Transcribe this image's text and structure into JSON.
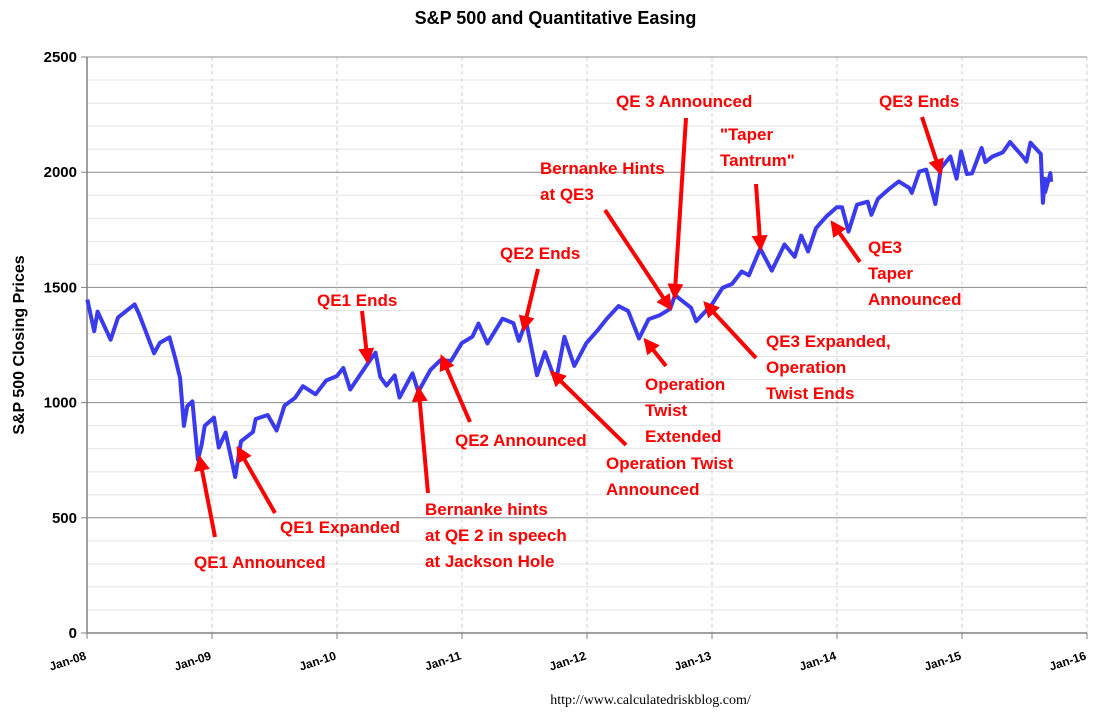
{
  "chart_data": {
    "type": "line",
    "title": "S&P 500 and Quantitative Easing",
    "ylabel": "S&P 500 Closing Prices",
    "xlabel": "",
    "ylim": [
      0,
      2500
    ],
    "yticks": [
      0,
      500,
      1000,
      1500,
      2000,
      2500
    ],
    "xlim": [
      "2008-01",
      "2016-01"
    ],
    "xticks": [
      "Jan-08",
      "Jan-09",
      "Jan-10",
      "Jan-11",
      "Jan-12",
      "Jan-13",
      "Jan-14",
      "Jan-15",
      "Jan-16"
    ],
    "grid": true,
    "line_color": "#3a3aee",
    "annotation_color": "#ff0000",
    "series": [
      {
        "points": [
          [
            "2008-01-02",
            1447
          ],
          [
            "2008-01-22",
            1310
          ],
          [
            "2008-02-01",
            1395
          ],
          [
            "2008-03-10",
            1273
          ],
          [
            "2008-04-01",
            1370
          ],
          [
            "2008-05-19",
            1426
          ],
          [
            "2008-06-01",
            1385
          ],
          [
            "2008-07-15",
            1214
          ],
          [
            "2008-08-01",
            1260
          ],
          [
            "2008-08-29",
            1283
          ],
          [
            "2008-09-15",
            1192
          ],
          [
            "2008-09-29",
            1106
          ],
          [
            "2008-10-10",
            899
          ],
          [
            "2008-10-20",
            985
          ],
          [
            "2008-11-04",
            1005
          ],
          [
            "2008-11-20",
            752
          ],
          [
            "2008-12-01",
            816
          ],
          [
            "2008-12-10",
            899
          ],
          [
            "2009-01-06",
            935
          ],
          [
            "2009-01-20",
            805
          ],
          [
            "2009-02-09",
            870
          ],
          [
            "2009-03-09",
            677
          ],
          [
            "2009-03-26",
            832
          ],
          [
            "2009-04-30",
            873
          ],
          [
            "2009-05-08",
            929
          ],
          [
            "2009-06-12",
            946
          ],
          [
            "2009-07-08",
            879
          ],
          [
            "2009-07-31",
            987
          ],
          [
            "2009-08-31",
            1021
          ],
          [
            "2009-09-23",
            1071
          ],
          [
            "2009-10-30",
            1036
          ],
          [
            "2009-11-30",
            1096
          ],
          [
            "2009-12-31",
            1115
          ],
          [
            "2010-01-19",
            1150
          ],
          [
            "2010-02-08",
            1057
          ],
          [
            "2010-03-31",
            1169
          ],
          [
            "2010-04-23",
            1217
          ],
          [
            "2010-05-07",
            1111
          ],
          [
            "2010-05-25",
            1074
          ],
          [
            "2010-06-18",
            1118
          ],
          [
            "2010-07-02",
            1022
          ],
          [
            "2010-08-09",
            1127
          ],
          [
            "2010-08-26",
            1047
          ],
          [
            "2010-09-30",
            1141
          ],
          [
            "2010-10-29",
            1183
          ],
          [
            "2010-11-30",
            1181
          ],
          [
            "2010-12-31",
            1258
          ],
          [
            "2011-01-31",
            1286
          ],
          [
            "2011-02-18",
            1343
          ],
          [
            "2011-03-16",
            1257
          ],
          [
            "2011-04-29",
            1364
          ],
          [
            "2011-05-31",
            1345
          ],
          [
            "2011-06-16",
            1268
          ],
          [
            "2011-07-07",
            1353
          ],
          [
            "2011-08-08",
            1119
          ],
          [
            "2011-08-31",
            1219
          ],
          [
            "2011-09-22",
            1130
          ],
          [
            "2011-10-03",
            1099
          ],
          [
            "2011-10-27",
            1285
          ],
          [
            "2011-11-25",
            1159
          ],
          [
            "2011-12-30",
            1258
          ],
          [
            "2012-01-31",
            1312
          ],
          [
            "2012-02-29",
            1366
          ],
          [
            "2012-04-02",
            1419
          ],
          [
            "2012-04-30",
            1398
          ],
          [
            "2012-06-01",
            1278
          ],
          [
            "2012-06-29",
            1362
          ],
          [
            "2012-07-31",
            1379
          ],
          [
            "2012-08-31",
            1407
          ],
          [
            "2012-09-14",
            1466
          ],
          [
            "2012-10-31",
            1412
          ],
          [
            "2012-11-15",
            1353
          ],
          [
            "2012-12-31",
            1426
          ],
          [
            "2013-01-31",
            1498
          ],
          [
            "2013-02-28",
            1515
          ],
          [
            "2013-03-28",
            1569
          ],
          [
            "2013-04-18",
            1552
          ],
          [
            "2013-05-21",
            1669
          ],
          [
            "2013-06-24",
            1573
          ],
          [
            "2013-07-31",
            1686
          ],
          [
            "2013-08-30",
            1633
          ],
          [
            "2013-09-18",
            1725
          ],
          [
            "2013-10-08",
            1656
          ],
          [
            "2013-10-31",
            1757
          ],
          [
            "2013-11-29",
            1806
          ],
          [
            "2013-12-31",
            1848
          ],
          [
            "2014-01-15",
            1848
          ],
          [
            "2014-02-03",
            1742
          ],
          [
            "2014-02-28",
            1859
          ],
          [
            "2014-03-31",
            1872
          ],
          [
            "2014-04-11",
            1815
          ],
          [
            "2014-04-30",
            1884
          ],
          [
            "2014-05-30",
            1924
          ],
          [
            "2014-06-30",
            1960
          ],
          [
            "2014-07-31",
            1931
          ],
          [
            "2014-08-07",
            1910
          ],
          [
            "2014-08-29",
            2003
          ],
          [
            "2014-09-18",
            2011
          ],
          [
            "2014-10-15",
            1862
          ],
          [
            "2014-10-31",
            2018
          ],
          [
            "2014-11-28",
            2068
          ],
          [
            "2014-12-16",
            1972
          ],
          [
            "2014-12-29",
            2090
          ],
          [
            "2015-01-15",
            1992
          ],
          [
            "2015-01-30",
            1995
          ],
          [
            "2015-02-27",
            2105
          ],
          [
            "2015-03-10",
            2044
          ],
          [
            "2015-03-31",
            2068
          ],
          [
            "2015-04-30",
            2086
          ],
          [
            "2015-05-21",
            2131
          ],
          [
            "2015-06-30",
            2063
          ],
          [
            "2015-07-08",
            2046
          ],
          [
            "2015-07-20",
            2128
          ],
          [
            "2015-08-19",
            2079
          ],
          [
            "2015-08-25",
            1867
          ],
          [
            "2015-08-31",
            1972
          ],
          [
            "2015-09-01",
            1914
          ],
          [
            "2015-09-16",
            1996
          ],
          [
            "2015-09-18",
            1958
          ]
        ]
      }
    ],
    "annotations": [
      {
        "lines": [
          "QE1 Announced"
        ],
        "target": [
          "2008-11-25",
          760
        ]
      },
      {
        "lines": [
          "QE1 Expanded"
        ],
        "target": [
          "2009-03-18",
          800
        ]
      },
      {
        "lines": [
          "QE1 Ends"
        ],
        "target": [
          "2010-03-31",
          1180
        ]
      },
      {
        "lines": [
          "Bernanke hints",
          "at QE 2 in speech",
          "at Jackson Hole"
        ],
        "target": [
          "2010-08-27",
          1060
        ]
      },
      {
        "lines": [
          "QE2 Announced"
        ],
        "target": [
          "2010-11-03",
          1197
        ]
      },
      {
        "lines": [
          "QE2 Ends"
        ],
        "target": [
          "2011-06-30",
          1320
        ]
      },
      {
        "lines": [
          "Operation Twist",
          "Announced"
        ],
        "target": [
          "2011-09-21",
          1130
        ]
      },
      {
        "lines": [
          "Bernanke Hints",
          "at QE3"
        ],
        "target": [
          "2012-08-31",
          1410
        ]
      },
      {
        "lines": [
          "QE 3 Announced"
        ],
        "target": [
          "2012-09-13",
          1460
        ]
      },
      {
        "lines": [
          "Operation",
          "Twist",
          "Extended"
        ],
        "target": [
          "2012-06-20",
          1270
        ]
      },
      {
        "lines": [
          "\"Taper",
          "Tantrum\""
        ],
        "target": [
          "2013-05-22",
          1670
        ]
      },
      {
        "lines": [
          "QE3 Expanded,",
          "Operation",
          "Twist Ends"
        ],
        "target": [
          "2012-12-12",
          1430
        ]
      },
      {
        "lines": [
          "QE3",
          "Taper",
          "Announced"
        ],
        "target": [
          "2013-12-18",
          1780
        ]
      },
      {
        "lines": [
          "QE3 Ends"
        ],
        "target": [
          "2014-10-29",
          2000
        ]
      }
    ]
  },
  "source": "http://www.calculatedriskblog.com/"
}
